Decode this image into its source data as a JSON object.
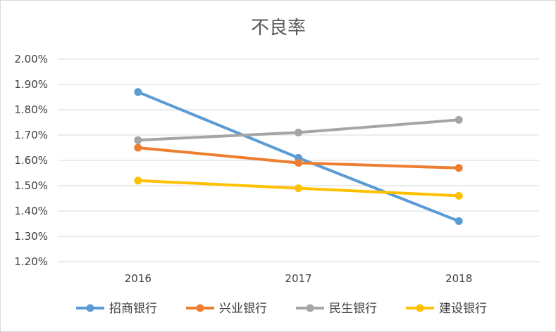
{
  "chart_data": {
    "type": "line",
    "title": "不良率",
    "xlabel": "",
    "ylabel": "",
    "categories": [
      "2016",
      "2017",
      "2018"
    ],
    "ylim": [
      0.012,
      0.02
    ],
    "ytick_step": 0.001,
    "ytick_labels": [
      "1.20%",
      "1.30%",
      "1.40%",
      "1.50%",
      "1.60%",
      "1.70%",
      "1.80%",
      "1.90%",
      "2.00%"
    ],
    "grid": true,
    "legend_position": "bottom",
    "series": [
      {
        "name": "招商银行",
        "color": "#5b9bd5",
        "values": [
          0.0187,
          0.0161,
          0.0136
        ]
      },
      {
        "name": "兴业银行",
        "color": "#ed7d31",
        "values": [
          0.0165,
          0.0159,
          0.0157
        ]
      },
      {
        "name": "民生银行",
        "color": "#a5a5a5",
        "values": [
          0.0168,
          0.0171,
          0.0176
        ]
      },
      {
        "name": "建设银行",
        "color": "#ffc000",
        "values": [
          0.0152,
          0.0149,
          0.0146
        ]
      }
    ]
  }
}
